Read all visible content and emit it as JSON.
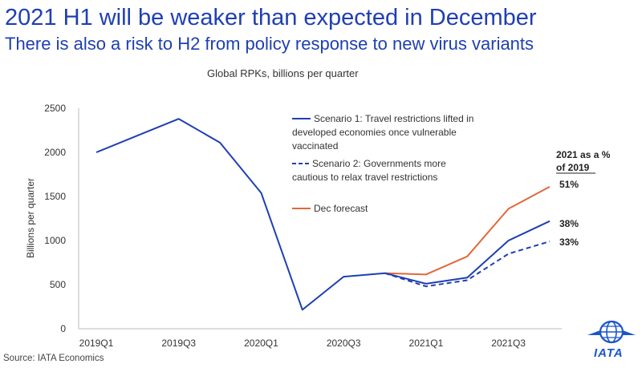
{
  "header": {
    "title": "2021 H1 will be weaker than expected in December",
    "subtitle": "There is also a risk to H2 from policy response to new virus variants"
  },
  "chart_caption": "Global RPKs, billions per quarter",
  "source": "Source: IATA Economics",
  "logo": {
    "icon": "globe-icon",
    "text": "IATA"
  },
  "colors": {
    "scenario": "#1f3fb3",
    "forecast": "#e0693a",
    "axis": "#999999"
  },
  "chart_data": {
    "type": "line",
    "title": "Global RPKs, billions per quarter",
    "ylabel": "Billions per quarter",
    "xlabel": "",
    "ylim": [
      0,
      2500
    ],
    "yticks": [
      0,
      500,
      1000,
      1500,
      2000,
      2500
    ],
    "categories": [
      "2019Q1",
      "2019Q2",
      "2019Q3",
      "2019Q4",
      "2020Q1",
      "2020Q2",
      "2020Q3",
      "2020Q4",
      "2021Q1",
      "2021Q2",
      "2021Q3",
      "2021Q4"
    ],
    "xtick_labels": [
      "2019Q1",
      "2019Q3",
      "2020Q1",
      "2020Q3",
      "2021Q1",
      "2021Q3"
    ],
    "grid": false,
    "legend_header": "2021 as a % of 2019",
    "series": [
      {
        "name": "Scenario 1: Travel restrictions lifted in developed economies once vulnerable vaccinated",
        "style": "solid",
        "color": "#1f3fb3",
        "values": [
          2000,
          2190,
          2380,
          2110,
          1540,
          215,
          590,
          630,
          510,
          580,
          1000,
          1220
        ],
        "end_label": "38%"
      },
      {
        "name": "Scenario 2: Governments more cautious to relax travel restrictions",
        "style": "dashed",
        "color": "#1f3fb3",
        "values": [
          null,
          null,
          null,
          null,
          null,
          null,
          null,
          630,
          480,
          550,
          850,
          990
        ],
        "end_label": "33%"
      },
      {
        "name": "Dec forecast",
        "style": "solid",
        "color": "#e0693a",
        "values": [
          null,
          null,
          null,
          null,
          null,
          null,
          null,
          630,
          615,
          820,
          1360,
          1610
        ],
        "end_label": "51%"
      }
    ]
  }
}
